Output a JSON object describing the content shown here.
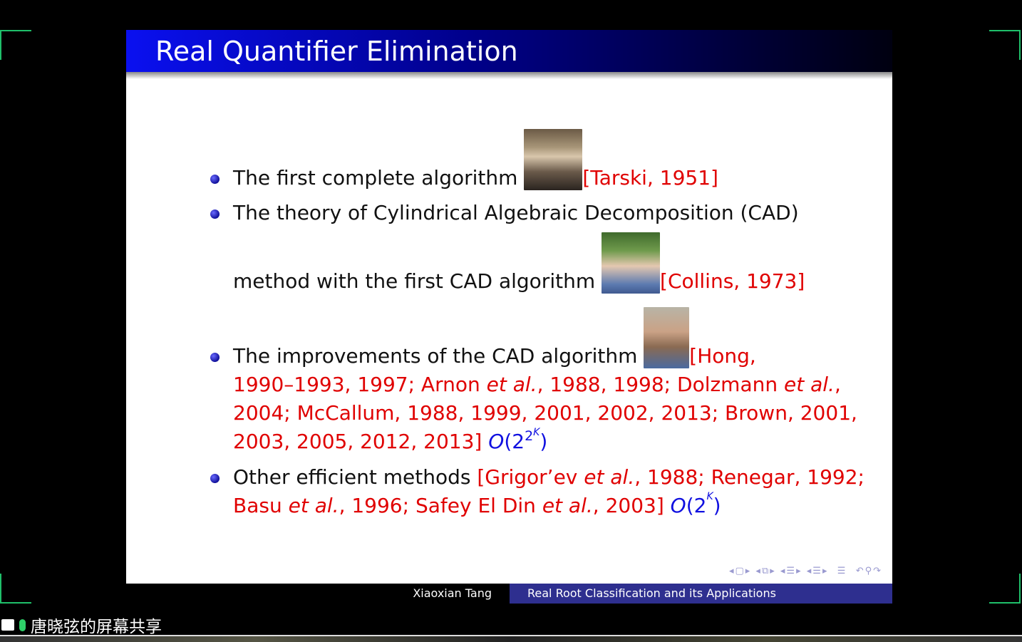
{
  "slide": {
    "title": "Real Quantifier Elimination",
    "lines": [
      {
        "bullet": true,
        "segments": [
          {
            "t": "The first complete algorithm ",
            "s": "n"
          },
          {
            "photo": "tarski"
          },
          {
            "t": "[Tarski, 1951]",
            "s": "r"
          }
        ]
      },
      {
        "bullet": true,
        "segments": [
          {
            "t": "The theory of Cylindrical Algebraic Decomposition (CAD)",
            "s": "n"
          }
        ]
      },
      {
        "bullet": false,
        "segments": [
          {
            "t": "method with the first CAD algorithm ",
            "s": "n"
          },
          {
            "photo": "collins"
          },
          {
            "t": "[Collins, 1973]",
            "s": "r"
          }
        ]
      },
      {
        "bullet": true,
        "segments": [
          {
            "t": "The improvements of the CAD algorithm ",
            "s": "n"
          },
          {
            "photo": "hong"
          },
          {
            "t": "[Hong,",
            "s": "r"
          }
        ]
      },
      {
        "bullet": false,
        "segments": [
          {
            "t": "1990–1993, 1997; Arnon ",
            "s": "r"
          },
          {
            "t": "et al.",
            "s": "ri"
          },
          {
            "t": ", 1988, 1998; Dolzmann ",
            "s": "r"
          },
          {
            "t": "et al.",
            "s": "ri"
          },
          {
            "t": ",",
            "s": "r"
          }
        ]
      },
      {
        "bullet": false,
        "segments": [
          {
            "t": "2004; McCallum, 1988, 1999, 2001, 2002, 2013; Brown, 2001,",
            "s": "r"
          }
        ]
      },
      {
        "bullet": false,
        "segments": [
          {
            "t": "2003, 2005, 2012, 2013] ",
            "s": "r"
          },
          {
            "t": "O",
            "s": "bi"
          },
          {
            "t": "(2",
            "s": "b"
          },
          {
            "t": "2",
            "s": "bsup"
          },
          {
            "t": "K",
            "s": "bsup2"
          },
          {
            "t": ")",
            "s": "b"
          }
        ]
      },
      {
        "bullet": true,
        "segments": [
          {
            "t": "Other efficient methods ",
            "s": "n"
          },
          {
            "t": "[Grigor’ev ",
            "s": "r"
          },
          {
            "t": "et al.",
            "s": "ri"
          },
          {
            "t": ", 1988; Renegar, 1992;",
            "s": "r"
          }
        ]
      },
      {
        "bullet": false,
        "segments": [
          {
            "t": "Basu ",
            "s": "r"
          },
          {
            "t": "et al.",
            "s": "ri"
          },
          {
            "t": ", 1996; Safey El Din ",
            "s": "r"
          },
          {
            "t": "et al.",
            "s": "ri"
          },
          {
            "t": ", 2003] ",
            "s": "r"
          },
          {
            "t": "O",
            "s": "bi"
          },
          {
            "t": "(2",
            "s": "b"
          },
          {
            "t": "K",
            "s": "bsup2"
          },
          {
            "t": ")",
            "s": "b"
          }
        ]
      }
    ],
    "footer": {
      "author": "Xiaoxian Tang",
      "talk_title": "Real Root Classification and its Applications"
    }
  },
  "share_banner": {
    "label": "唐晓弦的屏幕共享"
  },
  "colors": {
    "citation": "#e00000",
    "math": "#1010e0",
    "header_start": "#0a10f0",
    "footer_right": "#2e2f8f",
    "corner_marks": "#1fbf6a"
  }
}
